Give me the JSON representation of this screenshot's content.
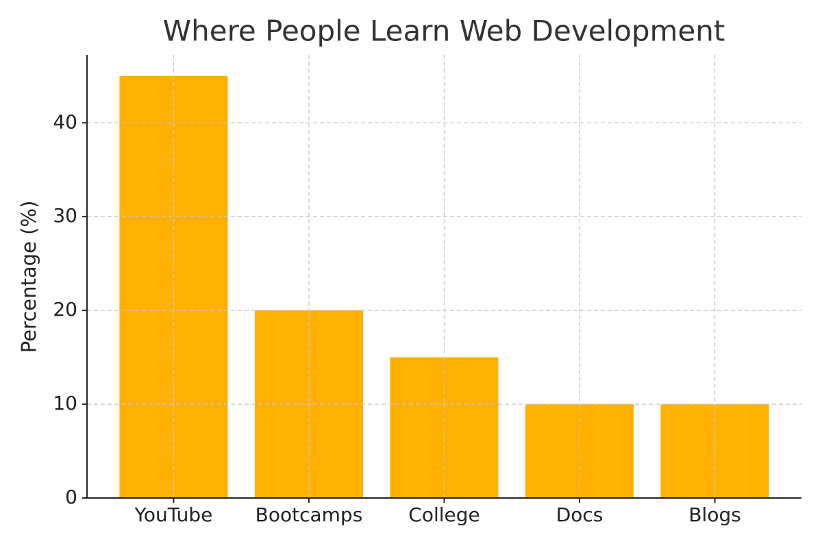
{
  "chart_data": {
    "type": "bar",
    "title": "Where People Learn Web Development",
    "y_label": "Percentage (%)",
    "categories": [
      "YouTube",
      "Bootcamps",
      "College",
      "Docs",
      "Blogs"
    ],
    "values": [
      45,
      20,
      15,
      10,
      10
    ],
    "color": "#ffb000",
    "ylim": [
      0,
      47.25
    ],
    "yticks": [
      0,
      10,
      20,
      30,
      40
    ],
    "grid": true
  }
}
